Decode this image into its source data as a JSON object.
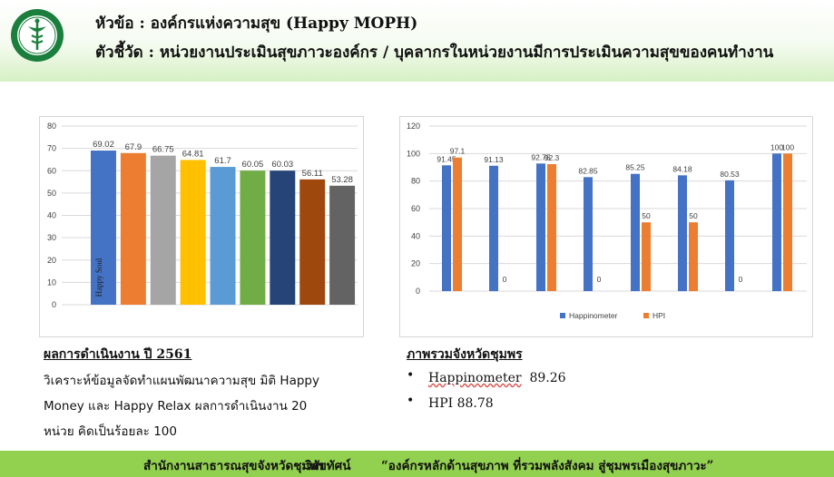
{
  "header": {
    "line1": "หัวข้อ : องค์กรแห่งความสุข (Happy MOPH)",
    "line2": "ตัวชี้วัด : หน่วยงานประเมินสุขภาวะองค์กร / บุคลากรในหน่วยงานมีการประเมินความสุขของคนทำงาน",
    "logo_icon": "caduceus-seal-icon",
    "logo_color": "#1a7f3c"
  },
  "chart_data": [
    {
      "type": "bar",
      "categories": [
        "",
        "",
        "",
        "",
        "",
        "",
        "",
        "",
        ""
      ],
      "values": [
        69.02,
        67.9,
        66.75,
        64.81,
        61.7,
        60.05,
        60.03,
        56.11,
        53.28
      ],
      "colors": [
        "#4472c4",
        "#ed7d31",
        "#a5a5a5",
        "#ffc000",
        "#5b9bd5",
        "#70ad47",
        "#264478",
        "#9e480e",
        "#636363"
      ],
      "bar_text": "Happy Soul",
      "data_labels": [
        "69.02",
        "67.9",
        "66.75",
        "64.81",
        "61.7",
        "60.05",
        "60.03",
        "56.11",
        "53.28"
      ],
      "ylim": [
        0,
        80
      ],
      "yticks": [
        "0",
        "10",
        "20",
        "30",
        "40",
        "50",
        "60",
        "70",
        "80"
      ],
      "grid": true,
      "title": "",
      "xlabel": "",
      "ylabel": ""
    },
    {
      "type": "bar",
      "categories": [
        "",
        "",
        "",
        "",
        "",
        "",
        "",
        ""
      ],
      "series": [
        {
          "name": "Happinometer",
          "color": "#4472c4",
          "values": [
            91.45,
            91.13,
            92.75,
            82.85,
            85.25,
            84.18,
            80.53,
            100
          ],
          "labels": [
            "91.45",
            "91.13",
            "92.75",
            "82.85",
            "85.25",
            "84.18",
            "80.53",
            "100"
          ]
        },
        {
          "name": "HPI",
          "color": "#ed7d31",
          "values": [
            97.1,
            0,
            92.3,
            0,
            50,
            50,
            0,
            100
          ],
          "labels": [
            "97.1",
            "0",
            "92.3",
            "0",
            "50",
            "50",
            "0",
            "100"
          ]
        }
      ],
      "ylim": [
        0,
        120
      ],
      "yticks": [
        "0",
        "20",
        "40",
        "60",
        "80",
        "100",
        "120"
      ],
      "grid": true,
      "legend_position": "bottom",
      "title": "",
      "xlabel": "",
      "ylabel": ""
    }
  ],
  "left_text": {
    "heading": "ผลการดำเนินงาน ปี 2561",
    "line1": "วิเคราะห์ข้อมูลจัดทำแผนพัฒนาความสุข มิติ Happy",
    "line2": "Money และ Happy Relax ผลการดำเนินงาน 20",
    "line3": "หน่วย คิดเป็นร้อยละ 100"
  },
  "right_text": {
    "heading": "ภาพรวมจังหวัดชุมพร",
    "bullet": "•",
    "item1_label": "Happinometer",
    "item1_value": "89.26",
    "item2": "HPI 88.78"
  },
  "footer": {
    "org": "สำนักงานสาธารณสุขจังหวัดชุมพร",
    "vision_label": "วิสัยทัศน์",
    "vision": "“องค์กรหลักด้านสุขภาพ ที่รวมพลังสังคม สู่ชุมพรเมืองสุขภาวะ”"
  }
}
